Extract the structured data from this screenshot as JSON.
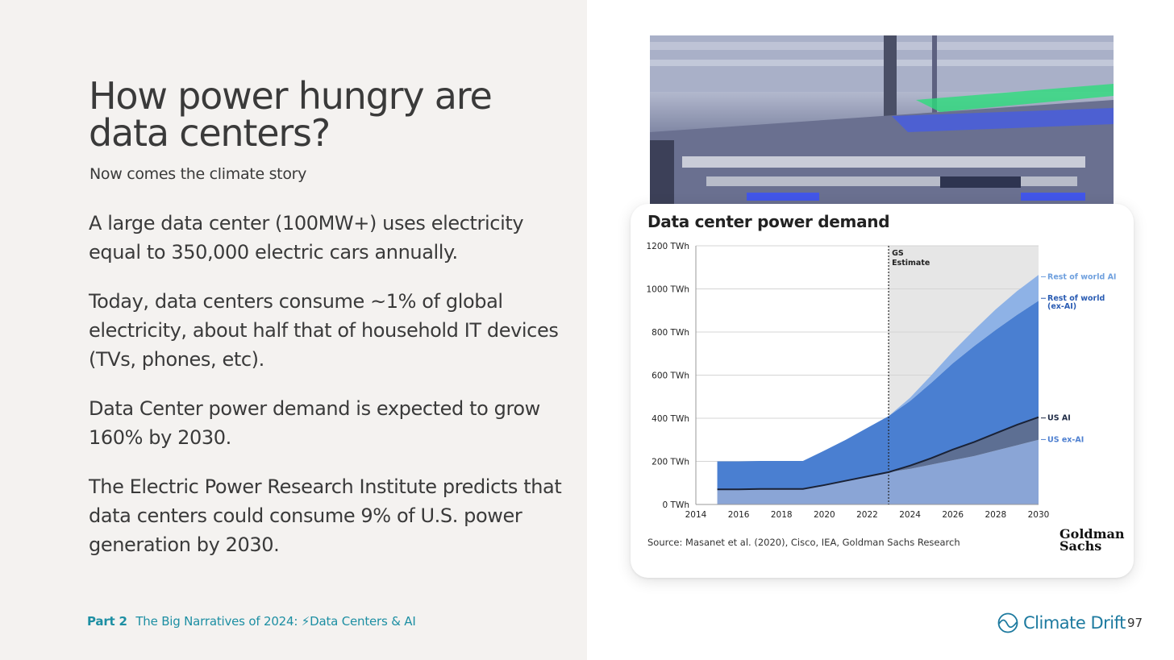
{
  "slide": {
    "title": "How power hungry are data centers?",
    "subtitle": "Now comes the climate story",
    "paragraphs": [
      "A large data center (100MW+) uses electricity equal to 350,000 electric cars annually.",
      "Today, data centers consume ~1% of global electricity, about half that of household IT devices (TVs, phones, etc).",
      "Data Center power demand is expected to grow 160% by 2030.",
      "The Electric Power Research Institute predicts that data centers could consume 9% of U.S. power generation by 2030."
    ],
    "page_number": "97"
  },
  "footer": {
    "part": "Part 2",
    "section_prefix": "The Big Narratives of 2024:",
    "emoji": "⚡",
    "section": "Data Centers & AI",
    "brand": "Climate Drift"
  },
  "photo": {
    "description_icon": "data-center-photo-icon"
  },
  "chart_card": {
    "title": "Data center power demand",
    "source": "Source: Masanet et al. (2020), Cisco, IEA, Goldman Sachs Research",
    "logo_lines": [
      "Goldman",
      "Sachs"
    ]
  },
  "chart_data": {
    "type": "area",
    "title": "Data center power demand",
    "x": [
      2015,
      2016,
      2017,
      2018,
      2019,
      2020,
      2021,
      2022,
      2023,
      2024,
      2025,
      2026,
      2027,
      2028,
      2029,
      2030
    ],
    "xticks": [
      "2014",
      "2016",
      "2018",
      "2020",
      "2022",
      "2024",
      "2026",
      "2028",
      "2030"
    ],
    "xlim": [
      2014,
      2030
    ],
    "yticks": [
      "0 TWh",
      "200 TWh",
      "400 TWh",
      "600 TWh",
      "800 TWh",
      "1000 TWh",
      "1200 TWh"
    ],
    "ylim": [
      0,
      1200
    ],
    "estimate_start": 2023,
    "estimate_label": [
      "GS",
      "Estimate"
    ],
    "series": [
      {
        "name": "US ex-AI",
        "values": [
          70,
          70,
          72,
          72,
          72,
          90,
          110,
          130,
          150,
          165,
          185,
          205,
          225,
          250,
          275,
          300
        ],
        "color": "#8aa5d6"
      },
      {
        "name": "US AI",
        "values": [
          0,
          0,
          0,
          0,
          0,
          0,
          0,
          0,
          0,
          15,
          30,
          50,
          65,
          80,
          95,
          105
        ],
        "color": "#5d6f93"
      },
      {
        "name": "Rest of world (ex-AI)",
        "values": [
          130,
          130,
          130,
          130,
          130,
          160,
          190,
          225,
          260,
          300,
          350,
          400,
          445,
          480,
          510,
          540
        ],
        "color": "#4a7fd1"
      },
      {
        "name": "Rest of world AI",
        "values": [
          0,
          0,
          0,
          0,
          0,
          0,
          0,
          0,
          0,
          15,
          35,
          55,
          75,
          95,
          110,
          120
        ],
        "color": "#8eb2e6"
      }
    ],
    "series_labels": [
      {
        "lines": [
          "Rest of world AI"
        ],
        "color": "#6fa0de",
        "value": 1060
      },
      {
        "lines": [
          "Rest of world",
          "(ex-AI)"
        ],
        "color": "#2a5cb3",
        "value": 960
      },
      {
        "lines": [
          "US AI"
        ],
        "color": "#1f2b45",
        "value": 405
      },
      {
        "lines": [
          "US ex-AI"
        ],
        "color": "#4d7fd0",
        "value": 305
      }
    ],
    "grid": true,
    "shaded_region_color": "#e6e6e6"
  }
}
